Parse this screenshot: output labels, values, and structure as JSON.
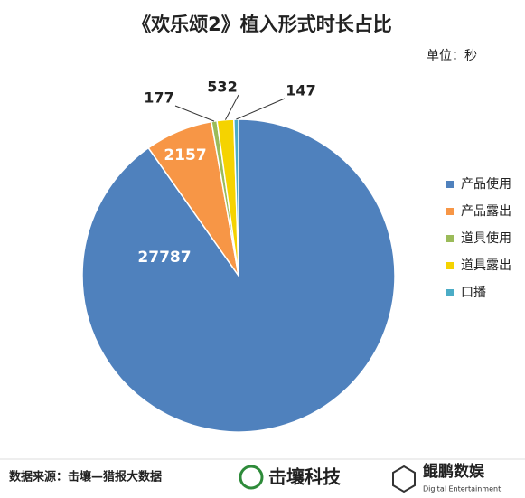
{
  "chart_data": {
    "type": "pie",
    "title": "《欢乐颂2》植入形式时长占比",
    "unit_label": "单位：秒",
    "categories": [
      "产品使用",
      "产品露出",
      "道具使用",
      "道具露出",
      "口播"
    ],
    "values": [
      27787,
      2157,
      177,
      532,
      147
    ],
    "colors": [
      "#4f81bd",
      "#f79646",
      "#9bbb59",
      "#f5d300",
      "#4bacc6"
    ],
    "legend": "right"
  },
  "footer": {
    "source": "数据来源：击壤—猎报大数据",
    "logo1": "击壤科技",
    "logo2": "鲲鹏数娱",
    "logo2_sub": "Digital Entertainment"
  }
}
